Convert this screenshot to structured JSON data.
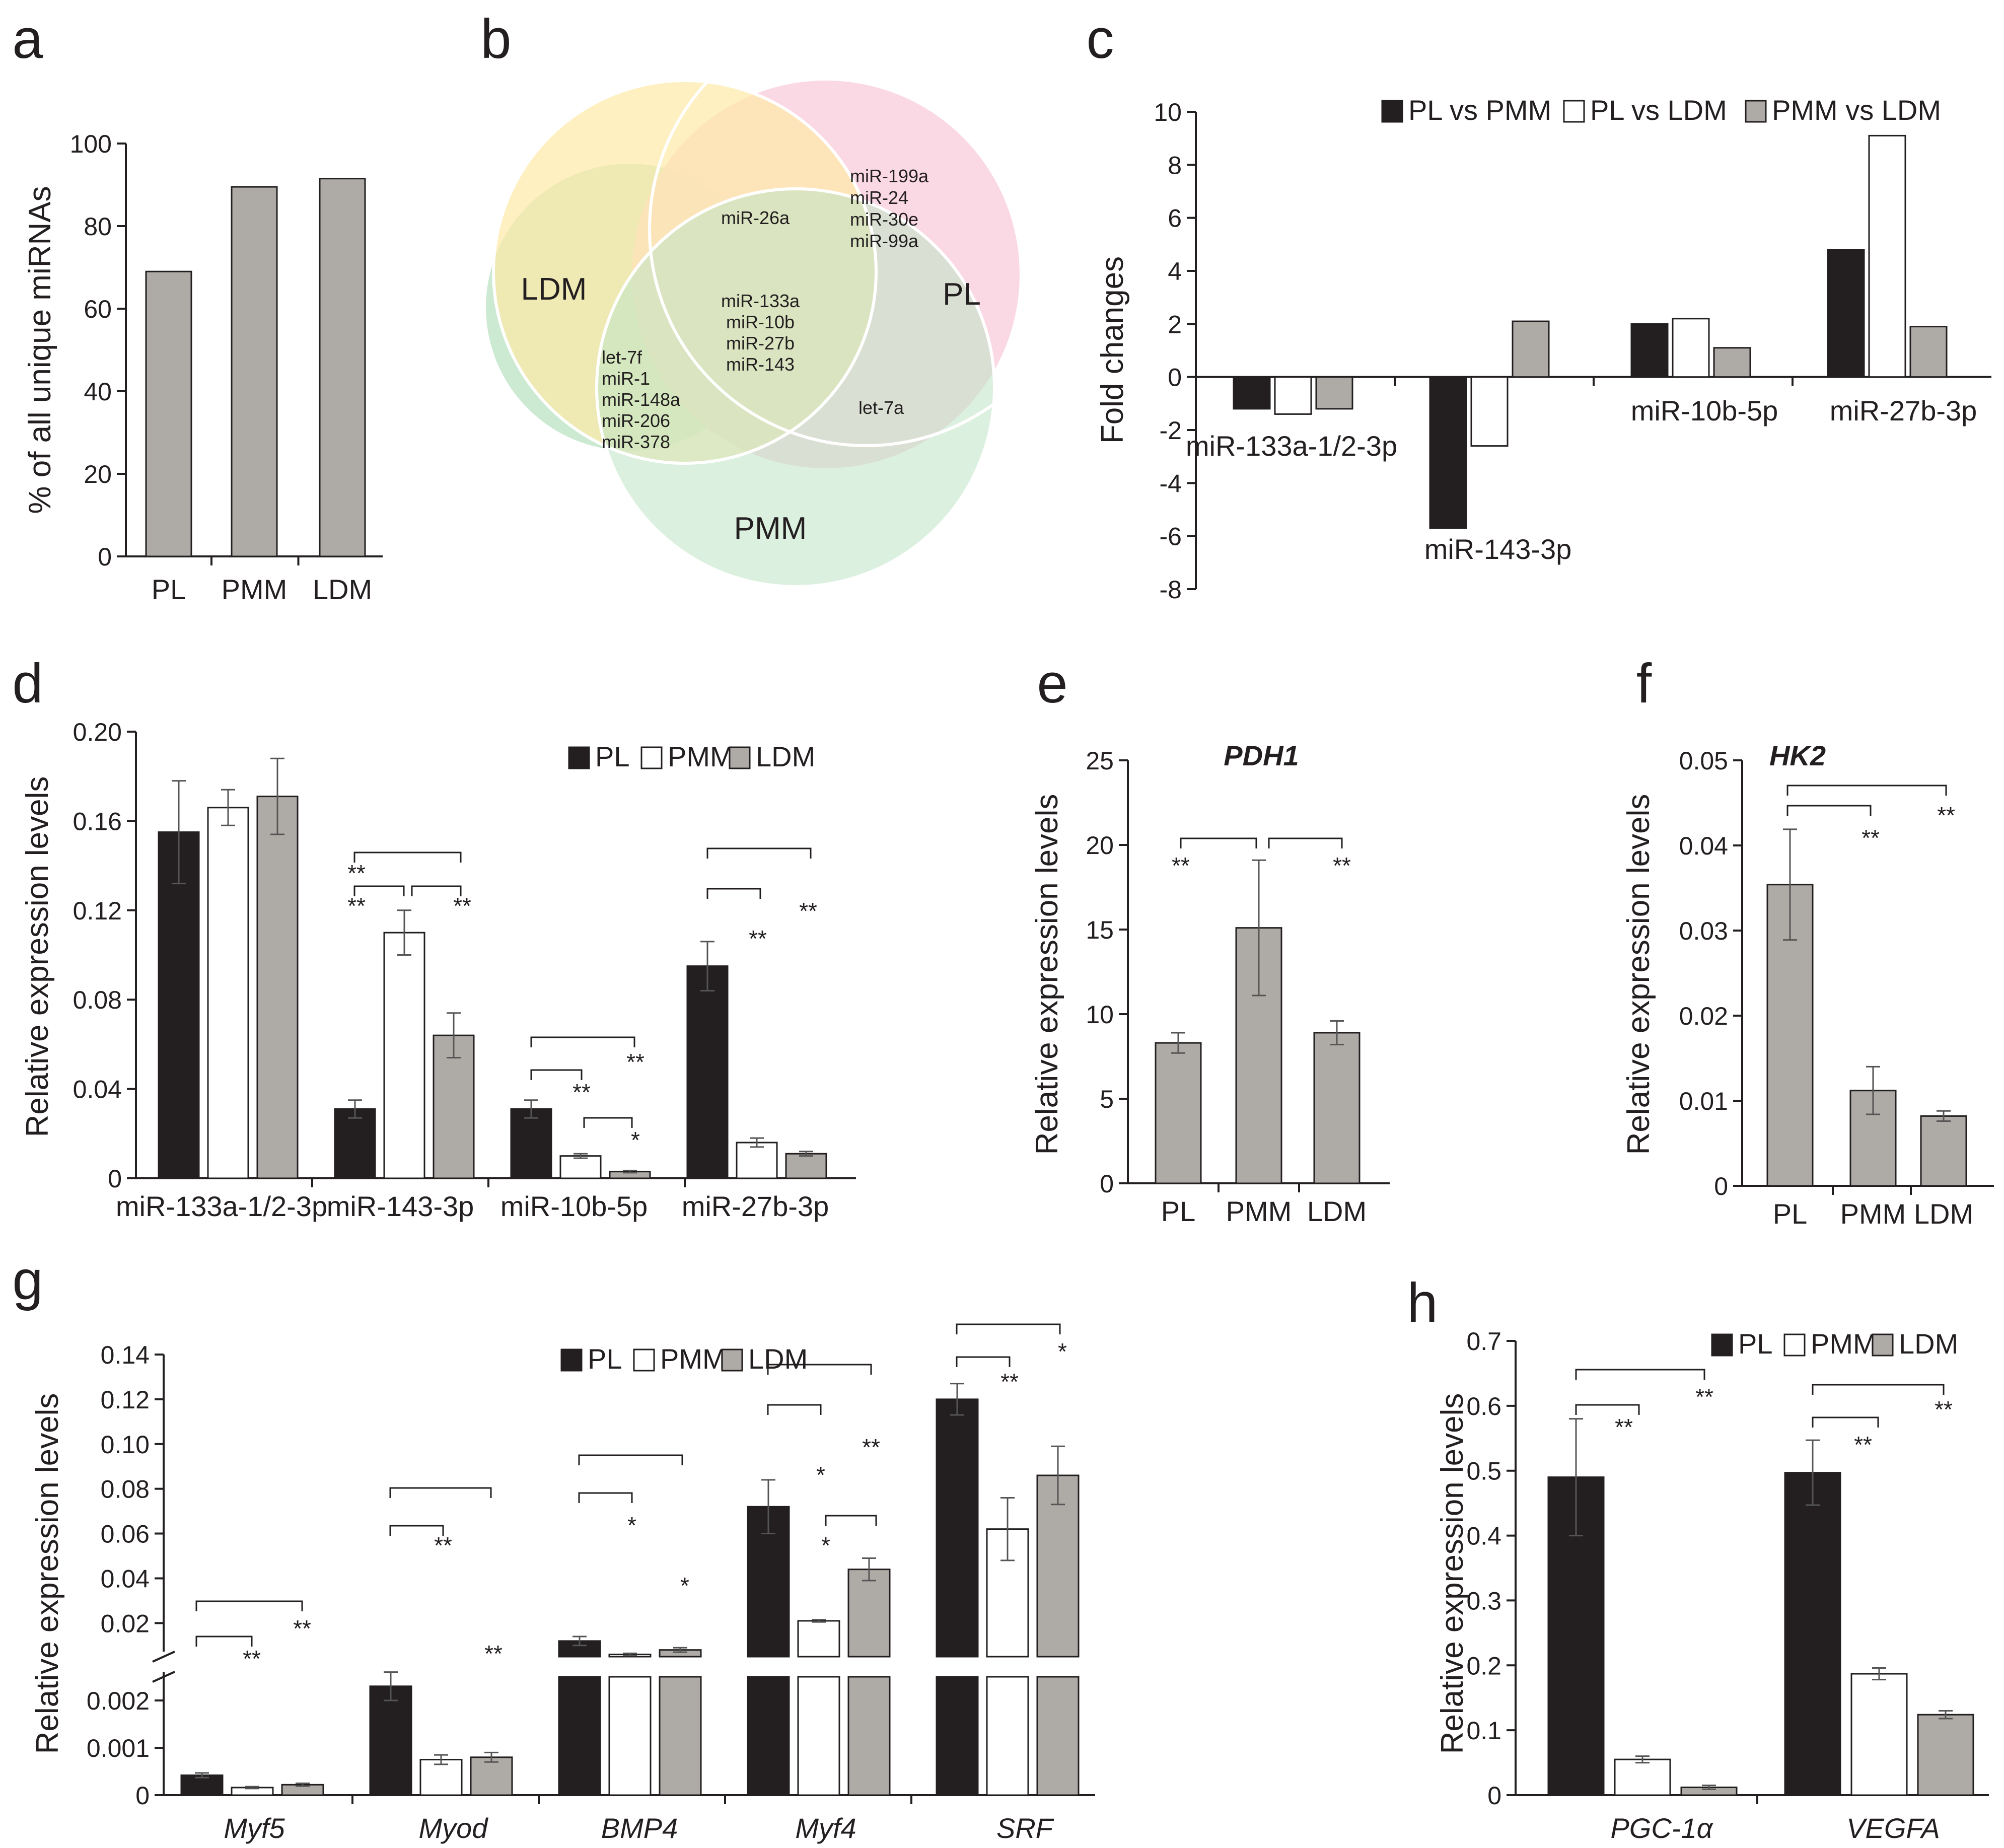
{
  "colors": {
    "pl": "#231f20",
    "pmm": "#ffffff",
    "ldm": "#aeaaa6",
    "ldm_circle": "#fde9a6",
    "pl_circle": "#f9d5e2",
    "pmm_circle": "#bfe3c6",
    "axis": "#231f20",
    "err": "#555555"
  },
  "panels": {
    "a": "a",
    "b": "b",
    "c": "c",
    "d": "d",
    "e": "e",
    "f": "f",
    "g": "g",
    "h": "h"
  },
  "chart_data": [
    {
      "id": "a",
      "type": "bar",
      "title": "",
      "ylabel": "% of all unique miRNAs",
      "categories": [
        "PL",
        "PMM",
        "LDM"
      ],
      "values": [
        69,
        89.5,
        91.5
      ],
      "ylim": [
        0,
        100
      ],
      "yticks": [
        "0",
        "20",
        "40",
        "60",
        "80",
        "100"
      ]
    },
    {
      "id": "b",
      "type": "venn",
      "sets": [
        "LDM",
        "PL",
        "PMM"
      ],
      "regions": {
        "ldm_pl": [
          "miR-26a"
        ],
        "pl_only": [
          "miR-199a",
          "miR-24",
          "miR-30e",
          "miR-99a"
        ],
        "all": [
          "miR-133a",
          "miR-10b",
          "miR-27b",
          "miR-143"
        ],
        "ldm_pmm": [
          "let-7f",
          "miR-1",
          "miR-148a",
          "miR-206",
          "miR-378"
        ],
        "pl_pmm": [
          "let-7a"
        ]
      }
    },
    {
      "id": "c",
      "type": "bar",
      "ylabel": "Fold changes",
      "categories": [
        "miR-133a-1/2-3p",
        "miR-143-3p",
        "miR-10b-5p",
        "miR-27b-3p"
      ],
      "series": [
        {
          "name": "PL vs PMM",
          "values": [
            -1.2,
            -5.7,
            2.0,
            4.8
          ]
        },
        {
          "name": "PL vs LDM",
          "values": [
            -1.4,
            -2.6,
            2.2,
            9.1
          ]
        },
        {
          "name": "PMM vs LDM",
          "values": [
            -1.2,
            2.1,
            1.1,
            1.9
          ]
        }
      ],
      "ylim": [
        -8,
        10
      ],
      "yticks": [
        "-8",
        "-6",
        "-4",
        "-2",
        "0",
        "2",
        "4",
        "6",
        "8",
        "10"
      ]
    },
    {
      "id": "d",
      "type": "bar",
      "ylabel": "Relative expression levels",
      "categories": [
        "miR-133a-1/2-3p",
        "miR-143-3p",
        "miR-10b-5p",
        "miR-27b-3p"
      ],
      "series": [
        {
          "name": "PL",
          "values": [
            0.155,
            0.031,
            0.031,
            0.095
          ],
          "errors": [
            0.023,
            0.004,
            0.004,
            0.011
          ]
        },
        {
          "name": "PMM",
          "values": [
            0.166,
            0.11,
            0.01,
            0.016
          ],
          "errors": [
            0.008,
            0.01,
            0.001,
            0.002
          ]
        },
        {
          "name": "LDM",
          "values": [
            0.171,
            0.064,
            0.003,
            0.011
          ],
          "errors": [
            0.017,
            0.01,
            0.0005,
            0.001
          ]
        }
      ],
      "ylim": [
        0,
        0.2
      ],
      "yticks": [
        "0",
        "0.04",
        "0.08",
        "0.12",
        "0.16",
        "0.20"
      ],
      "significance": [
        "**",
        "**",
        "**",
        "**",
        "**",
        "*",
        "**",
        "**"
      ]
    },
    {
      "id": "e",
      "type": "bar",
      "title": "PDH1",
      "ylabel": "Relative expression levels",
      "categories": [
        "PL",
        "PMM",
        "LDM"
      ],
      "values": [
        8.3,
        15.1,
        8.9
      ],
      "errors": [
        0.6,
        4.0,
        0.7
      ],
      "ylim": [
        0,
        25
      ],
      "yticks": [
        "0",
        "5",
        "10",
        "15",
        "20",
        "25"
      ],
      "significance": [
        "**",
        "**"
      ]
    },
    {
      "id": "f",
      "type": "bar",
      "title": "HK2",
      "ylabel": "Relative expression levels",
      "categories": [
        "PL",
        "PMM",
        "LDM"
      ],
      "values": [
        0.0354,
        0.0112,
        0.0082
      ],
      "errors": [
        0.0065,
        0.0028,
        0.0006
      ],
      "ylim": [
        0,
        0.05
      ],
      "yticks": [
        "0",
        "0.01",
        "0.02",
        "0.03",
        "0.04",
        "0.05"
      ],
      "significance": [
        "**",
        "**"
      ]
    },
    {
      "id": "g",
      "type": "bar",
      "ylabel": "Relative expression levels",
      "categories": [
        "Myf5",
        "Myod",
        "BMP4",
        "Myf4",
        "SRF"
      ],
      "series": [
        {
          "name": "PL",
          "values": [
            0.00042,
            0.0023,
            0.012,
            0.072,
            0.12
          ],
          "errors": [
            5e-05,
            0.0003,
            0.002,
            0.012,
            0.007
          ]
        },
        {
          "name": "PMM",
          "values": [
            0.00016,
            0.00075,
            0.006,
            0.021,
            0.062
          ],
          "errors": [
            2e-05,
            0.0001,
            0.0005,
            0.0005,
            0.014
          ]
        },
        {
          "name": "LDM",
          "values": [
            0.00022,
            0.0008,
            0.008,
            0.044,
            0.086
          ],
          "errors": [
            3e-05,
            0.0001,
            0.001,
            0.005,
            0.013
          ]
        }
      ],
      "ylim_lower": [
        0,
        0.0025
      ],
      "ylim_upper": [
        0.005,
        0.14
      ],
      "yticks_lower": [
        "0",
        "0.001",
        "0.002"
      ],
      "yticks_upper": [
        "0.02",
        "0.04",
        "0.06",
        "0.08",
        "0.10",
        "0.12",
        "0.14"
      ],
      "significance": [
        "**",
        "**",
        "**",
        "**",
        "*",
        "*",
        "**",
        "*",
        "*",
        "**",
        "*"
      ]
    },
    {
      "id": "h",
      "type": "bar",
      "ylabel": "Relative expression levels",
      "categories": [
        "PGC-1α",
        "VEGFA"
      ],
      "series": [
        {
          "name": "PL",
          "values": [
            0.49,
            0.497
          ],
          "errors": [
            0.09,
            0.05
          ]
        },
        {
          "name": "PMM",
          "values": [
            0.055,
            0.187
          ],
          "errors": [
            0.005,
            0.009
          ]
        },
        {
          "name": "LDM",
          "values": [
            0.012,
            0.124
          ],
          "errors": [
            0.003,
            0.006
          ]
        }
      ],
      "ylim": [
        0,
        0.7
      ],
      "yticks": [
        "0",
        "0.1",
        "0.2",
        "0.3",
        "0.4",
        "0.5",
        "0.6",
        "0.7"
      ],
      "significance": [
        "**",
        "**",
        "**",
        "**"
      ]
    }
  ]
}
